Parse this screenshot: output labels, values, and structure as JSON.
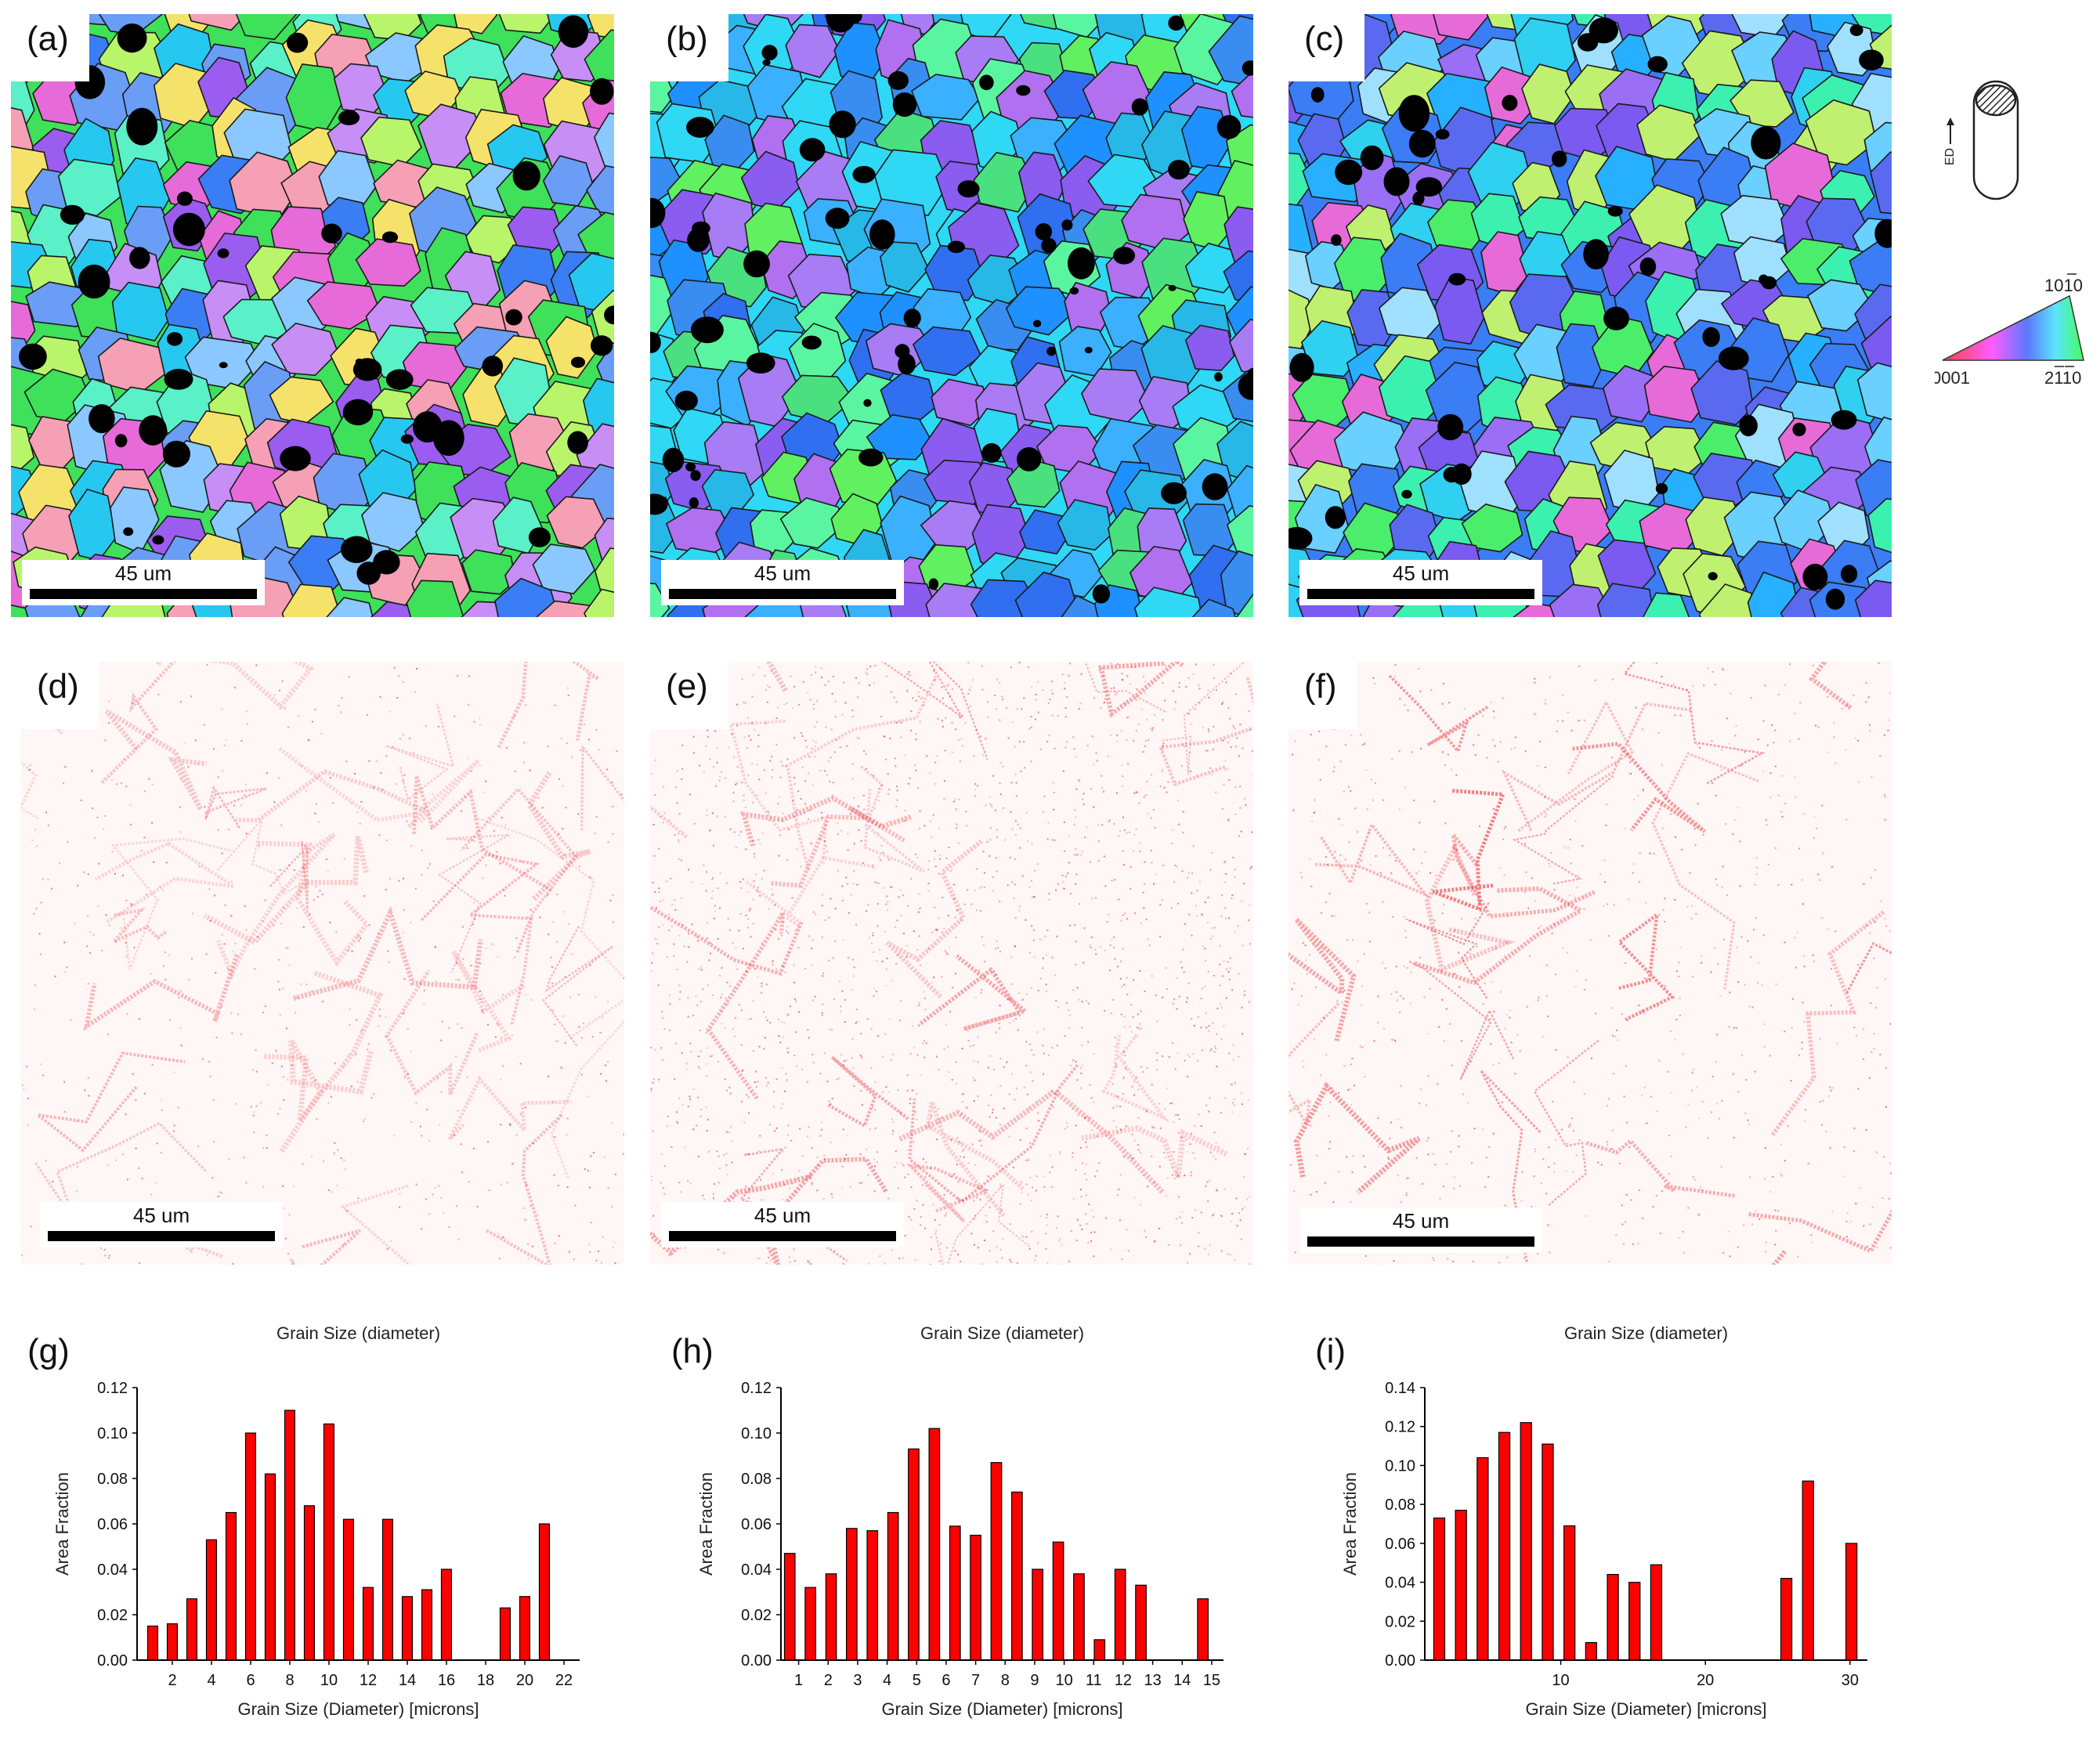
{
  "figure": {
    "panels_top": [
      {
        "label": "(a)",
        "scale": "45 um"
      },
      {
        "label": "(b)",
        "scale": "45 um"
      },
      {
        "label": "(c)",
        "scale": "45 um"
      }
    ],
    "panels_mid": [
      {
        "label": "(d)",
        "scale": "45 um"
      },
      {
        "label": "(e)",
        "scale": "45 um"
      },
      {
        "label": "(f)",
        "scale": "45 um"
      }
    ],
    "legend": {
      "direction": "ED",
      "ipf_top": "10̅ 1̅ 0",
      "ipf_top_text": "1010",
      "ipf_left": "0001",
      "ipf_right": "2110"
    },
    "colors": {
      "bar": "#ff0000",
      "kam": "#e8464b"
    }
  },
  "chart_data": [
    {
      "type": "bar",
      "panel": "(g)",
      "title": "Grain Size (diameter)",
      "xlabel": "Grain Size (Diameter) [microns]",
      "ylabel": "Area Fraction",
      "x": [
        1,
        2,
        3,
        4,
        5,
        6,
        7,
        8,
        9,
        10,
        11,
        12,
        13,
        14,
        15,
        16,
        17,
        18,
        19,
        20,
        21,
        22
      ],
      "values": [
        0.015,
        0.016,
        0.027,
        0.053,
        0.065,
        0.1,
        0.082,
        0.11,
        0.068,
        0.104,
        0.062,
        0.032,
        0.062,
        0.028,
        0.031,
        0.04,
        0.0,
        0.0,
        0.023,
        0.028,
        0.06,
        0.0
      ],
      "xlim": [
        0.2,
        22.8
      ],
      "xticks": [
        2,
        4,
        6,
        8,
        10,
        12,
        14,
        16,
        18,
        20,
        22
      ],
      "ylim": [
        0,
        0.12
      ],
      "yticks": [
        "0.00",
        "0.02",
        "0.04",
        "0.06",
        "0.08",
        "0.10",
        "0.12"
      ]
    },
    {
      "type": "bar",
      "panel": "(h)",
      "title": "Grain Size (diameter)",
      "xlabel": "Grain Size (Diameter) [microns]",
      "ylabel": "Area Fraction",
      "x": [
        0.7,
        1.4,
        2.1,
        2.8,
        3.5,
        4.2,
        4.9,
        5.6,
        6.3,
        7.0,
        7.7,
        8.4,
        9.1,
        9.8,
        10.5,
        11.2,
        11.9,
        12.6,
        13.3,
        14.0,
        14.7
      ],
      "values": [
        0.047,
        0.032,
        0.038,
        0.058,
        0.057,
        0.065,
        0.093,
        0.102,
        0.059,
        0.055,
        0.087,
        0.074,
        0.04,
        0.052,
        0.038,
        0.009,
        0.04,
        0.033,
        0.0,
        0.0,
        0.027
      ],
      "xlim": [
        0.4,
        15.4
      ],
      "xticks": [
        1,
        2,
        3,
        4,
        5,
        6,
        7,
        8,
        9,
        10,
        11,
        12,
        13,
        14,
        15
      ],
      "ylim": [
        0,
        0.12
      ],
      "yticks": [
        "0.00",
        "0.02",
        "0.04",
        "0.06",
        "0.08",
        "0.10",
        "0.12"
      ]
    },
    {
      "type": "bar",
      "panel": "(i)",
      "title": "Grain Size (diameter)",
      "xlabel": "Grain Size (Diameter) [microns]",
      "ylabel": "Area Fraction",
      "x": [
        1.6,
        3.1,
        4.6,
        6.1,
        7.6,
        9.1,
        10.6,
        12.1,
        13.6,
        15.1,
        16.6,
        18.1,
        19.6,
        21.1,
        22.6,
        24.1,
        25.6,
        27.1,
        28.6,
        30.1
      ],
      "values": [
        0.073,
        0.077,
        0.104,
        0.117,
        0.122,
        0.111,
        0.069,
        0.009,
        0.044,
        0.04,
        0.049,
        0.0,
        0.0,
        0.0,
        0.0,
        0.0,
        0.042,
        0.092,
        0.0,
        0.06
      ],
      "xlim": [
        0.6,
        31.2
      ],
      "xticks": [
        10,
        20,
        30
      ],
      "ylim": [
        0,
        0.14
      ],
      "yticks": [
        "0.00",
        "0.02",
        "0.04",
        "0.06",
        "0.08",
        "0.10",
        "0.12",
        "0.14"
      ]
    }
  ]
}
